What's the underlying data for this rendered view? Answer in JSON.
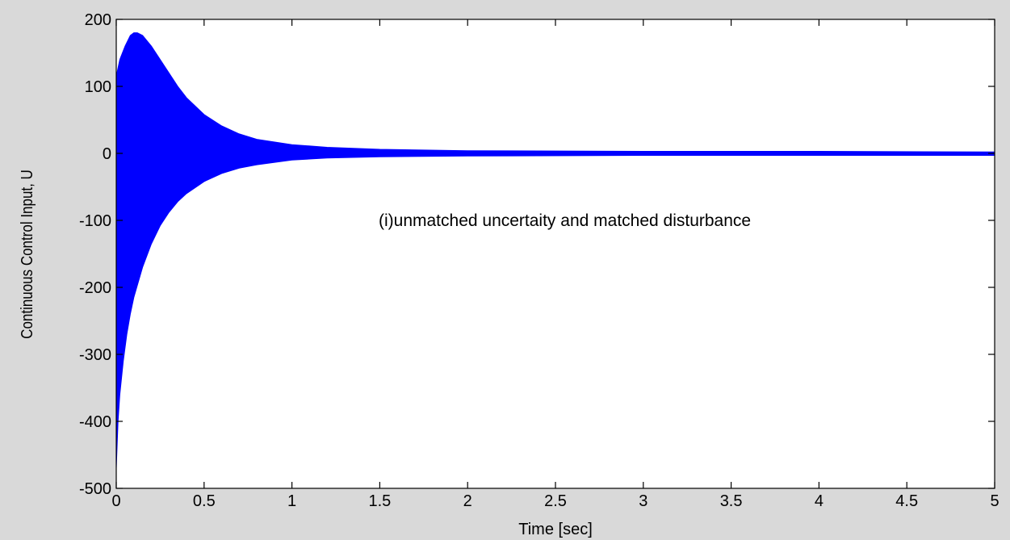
{
  "chart_data": {
    "type": "area",
    "title": "",
    "xlabel": "Time [sec]",
    "ylabel": "Continuous Control Input, U",
    "xlim": [
      0,
      5
    ],
    "ylim": [
      -500,
      200
    ],
    "x_ticks": [
      0,
      0.5,
      1,
      1.5,
      2,
      2.5,
      3,
      3.5,
      4,
      4.5,
      5
    ],
    "x_tick_labels": [
      "0",
      "0.5",
      "1",
      "1.5",
      "2",
      "2.5",
      "3",
      "3.5",
      "4",
      "4.5",
      "5"
    ],
    "y_ticks": [
      200,
      100,
      0,
      -100,
      -200,
      -300,
      -400,
      -500
    ],
    "y_tick_labels": [
      "200",
      "100",
      "0",
      "-100",
      "-200",
      "-300",
      "-400",
      "-500"
    ],
    "grid": false,
    "annotation": "(i)unmatched uncertaity and matched disturbance",
    "series": [
      {
        "color": "#0000ff",
        "upper_envelope": [
          [
            0,
            115
          ],
          [
            0.02,
            140
          ],
          [
            0.05,
            160
          ],
          [
            0.08,
            176
          ],
          [
            0.1,
            180
          ],
          [
            0.12,
            180
          ],
          [
            0.15,
            176
          ],
          [
            0.2,
            160
          ],
          [
            0.25,
            140
          ],
          [
            0.3,
            120
          ],
          [
            0.35,
            100
          ],
          [
            0.4,
            83
          ],
          [
            0.5,
            58
          ],
          [
            0.6,
            41
          ],
          [
            0.7,
            29
          ],
          [
            0.8,
            21
          ],
          [
            1.0,
            13
          ],
          [
            1.2,
            9
          ],
          [
            1.5,
            6
          ],
          [
            2.0,
            4
          ],
          [
            3.0,
            3
          ],
          [
            4.0,
            3
          ],
          [
            5.0,
            2
          ]
        ],
        "lower_envelope": [
          [
            0,
            -470
          ],
          [
            0.01,
            -400
          ],
          [
            0.02,
            -360
          ],
          [
            0.04,
            -310
          ],
          [
            0.06,
            -270
          ],
          [
            0.08,
            -240
          ],
          [
            0.1,
            -215
          ],
          [
            0.15,
            -170
          ],
          [
            0.2,
            -135
          ],
          [
            0.25,
            -108
          ],
          [
            0.3,
            -88
          ],
          [
            0.35,
            -72
          ],
          [
            0.4,
            -60
          ],
          [
            0.5,
            -42
          ],
          [
            0.6,
            -30
          ],
          [
            0.7,
            -22
          ],
          [
            0.8,
            -17
          ],
          [
            1.0,
            -10
          ],
          [
            1.2,
            -7
          ],
          [
            1.5,
            -5
          ],
          [
            2.0,
            -4
          ],
          [
            3.0,
            -3
          ],
          [
            4.0,
            -3
          ],
          [
            5.0,
            -3
          ]
        ]
      }
    ]
  }
}
